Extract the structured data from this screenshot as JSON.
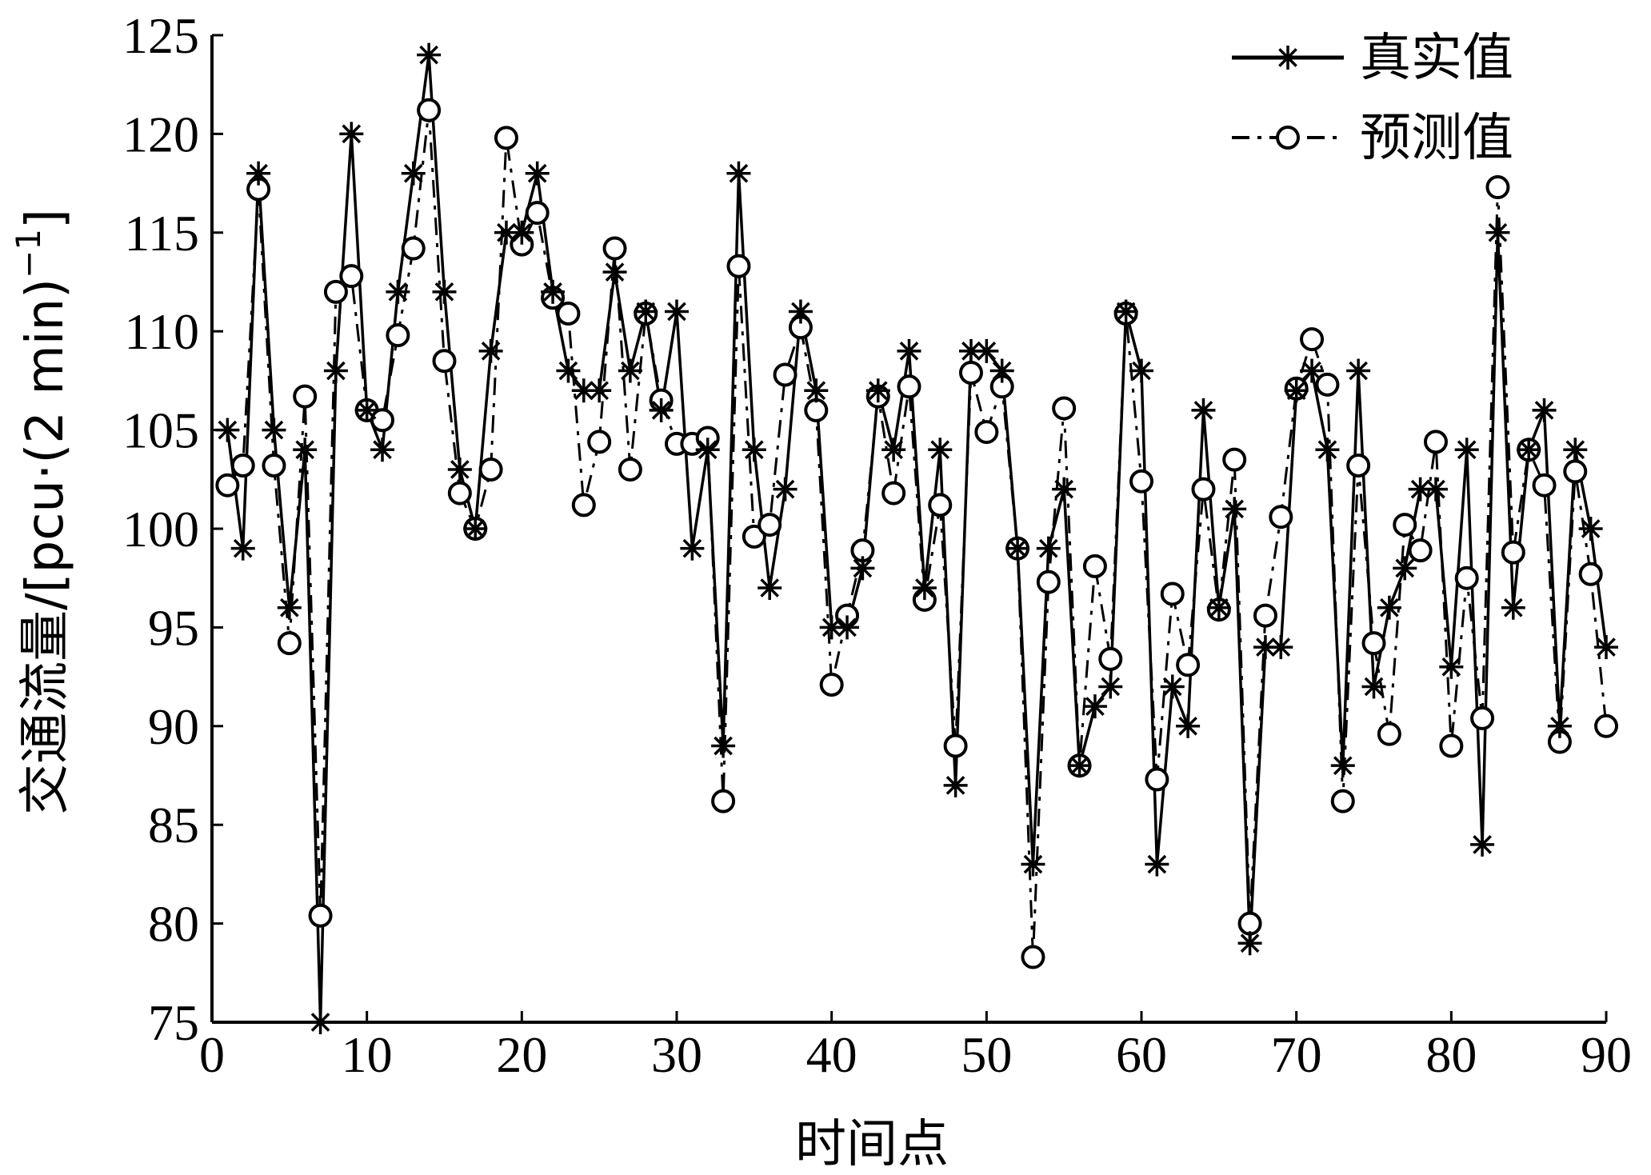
{
  "chart_data": {
    "type": "line",
    "title": "",
    "xlabel": "时间点",
    "ylabel": "交通流量/[pcu·(2 min)",
    "ylabel_sup": "−1",
    "ylabel_close": "]",
    "xlim": [
      0,
      90
    ],
    "ylim": [
      75,
      125
    ],
    "xticks": [
      0,
      10,
      20,
      30,
      40,
      50,
      60,
      70,
      80,
      90
    ],
    "yticks": [
      75,
      80,
      85,
      90,
      95,
      100,
      105,
      110,
      115,
      120,
      125
    ],
    "grid": false,
    "legend_position": "top-right",
    "x": [
      1,
      2,
      3,
      4,
      5,
      6,
      7,
      8,
      9,
      10,
      11,
      12,
      13,
      14,
      15,
      16,
      17,
      18,
      19,
      20,
      21,
      22,
      23,
      24,
      25,
      26,
      27,
      28,
      29,
      30,
      31,
      32,
      33,
      34,
      35,
      36,
      37,
      38,
      39,
      40,
      41,
      42,
      43,
      44,
      45,
      46,
      47,
      48,
      49,
      50,
      51,
      52,
      53,
      54,
      55,
      56,
      57,
      58,
      59,
      60,
      61,
      62,
      63,
      64,
      65,
      66,
      67,
      68,
      69,
      70,
      71,
      72,
      73,
      74,
      75,
      76,
      77,
      78,
      79,
      80,
      81,
      82,
      83,
      84,
      85,
      86,
      87,
      88,
      89,
      90
    ],
    "series": [
      {
        "name": "真实值",
        "line_style": "solid",
        "marker": "asterisk",
        "values": [
          105,
          99,
          118,
          105,
          96,
          104,
          75,
          108,
          120,
          106,
          104,
          112,
          118,
          124,
          112,
          103,
          100,
          109,
          115,
          115,
          118,
          112,
          108,
          107,
          107,
          113,
          108,
          111,
          106,
          111,
          99,
          104,
          89,
          118,
          104,
          97,
          102,
          111,
          107,
          95,
          95,
          98,
          107,
          104,
          109,
          97,
          104,
          87,
          109,
          109,
          108,
          99,
          83,
          99,
          102,
          88,
          91,
          92,
          111,
          108,
          83,
          92,
          90,
          106,
          96,
          101,
          79,
          94,
          94,
          107,
          108,
          104,
          88,
          108,
          92,
          96,
          98,
          102,
          102,
          93,
          104,
          84,
          115,
          96,
          104,
          106,
          90,
          104,
          100,
          94
        ]
      },
      {
        "name": "预测值",
        "line_style": "dashdot",
        "marker": "circle",
        "values": [
          102.2,
          103.2,
          117.2,
          103.2,
          94.2,
          106.7,
          80.4,
          112,
          112.8,
          106,
          105.5,
          109.8,
          114.2,
          121.2,
          108.5,
          101.8,
          100,
          103,
          119.8,
          114.4,
          116,
          111.7,
          110.9,
          101.2,
          104.4,
          114.2,
          103,
          110.9,
          106.5,
          104.3,
          104.3,
          104.6,
          86.2,
          113.3,
          99.6,
          100.2,
          107.8,
          110.2,
          106,
          92.1,
          95.6,
          98.9,
          106.7,
          101.8,
          107.2,
          96.4,
          101.2,
          89,
          107.9,
          104.9,
          107.2,
          99,
          78.3,
          97.3,
          106.1,
          88,
          98.1,
          93.4,
          110.9,
          102.4,
          87.3,
          96.7,
          93.1,
          102,
          95.9,
          103.5,
          80,
          95.6,
          100.6,
          107.1,
          109.6,
          107.3,
          86.2,
          103.2,
          94.2,
          89.6,
          100.2,
          98.9,
          104.4,
          89,
          97.5,
          90.4,
          117.3,
          98.8,
          104,
          102.2,
          89.2,
          102.9,
          97.7,
          90
        ]
      }
    ]
  }
}
